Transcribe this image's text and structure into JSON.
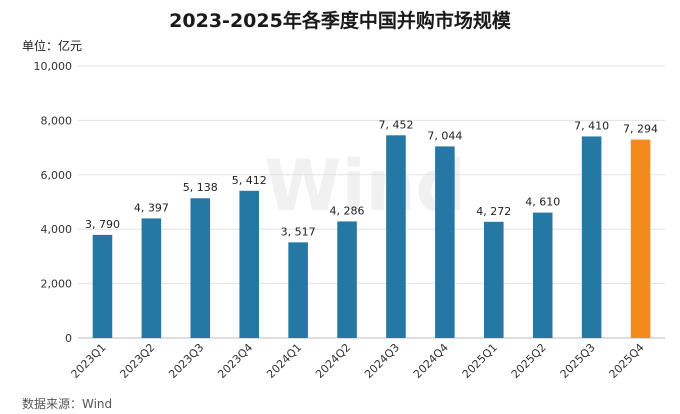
{
  "chart_data": {
    "type": "bar",
    "title": "2023-2025年各季度中国并购市场规模",
    "unit_label": "单位：亿元",
    "source": "数据来源：Wind",
    "watermark": "Wind",
    "categories": [
      "2023Q1",
      "2023Q2",
      "2023Q3",
      "2023Q4",
      "2024Q1",
      "2024Q2",
      "2024Q3",
      "2024Q4",
      "2025Q1",
      "2025Q2",
      "2025Q3",
      "2025Q4"
    ],
    "values": [
      3790,
      4397,
      5138,
      5412,
      3517,
      4286,
      7452,
      7044,
      4272,
      4610,
      7410,
      7294
    ],
    "value_labels": [
      "3, 790",
      "4, 397",
      "5, 138",
      "5, 412",
      "3, 517",
      "4, 286",
      "7, 452",
      "7, 044",
      "4, 272",
      "4, 610",
      "7, 410",
      "7, 294"
    ],
    "y_ticks": [
      0,
      2000,
      4000,
      6000,
      8000,
      10000
    ],
    "y_tick_labels": [
      "0",
      "2,000",
      "4,000",
      "6,000",
      "8,000",
      "10,000"
    ],
    "ylim": [
      0,
      10000
    ],
    "grid": true,
    "colors": {
      "bar": "#2577a4",
      "highlight": "#f28a1d",
      "grid": "#e3e3e3"
    },
    "highlight_index": 11
  }
}
